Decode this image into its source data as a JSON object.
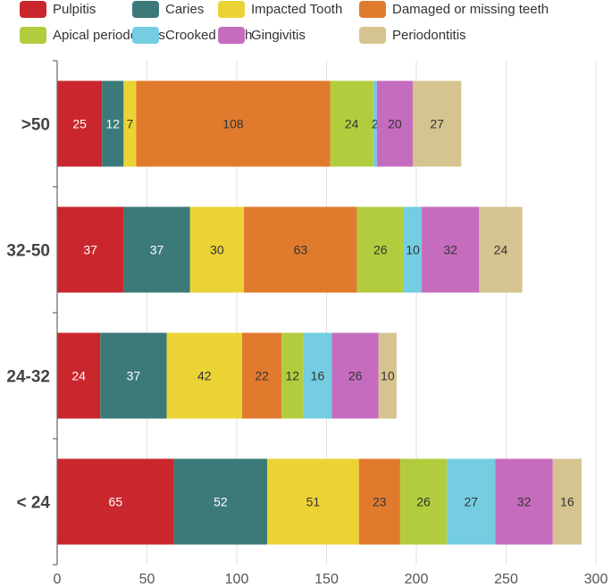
{
  "chart_data": {
    "type": "bar",
    "orientation": "horizontal",
    "stacked": true,
    "title": "",
    "xlabel": "",
    "ylabel": "",
    "xlim": [
      0,
      300
    ],
    "x_ticks": [
      0,
      50,
      100,
      150,
      200,
      250,
      300
    ],
    "grid": true,
    "legend_position": "top",
    "categories": [
      ">50",
      "32-50",
      "24-32",
      "< 24"
    ],
    "series": [
      {
        "name": "Pulpitis",
        "color": "#c9272d",
        "label_color": "#ffffff",
        "values": [
          25,
          37,
          24,
          65
        ]
      },
      {
        "name": "Caries",
        "color": "#3b7a78",
        "label_color": "#ffffff",
        "values": [
          12,
          37,
          37,
          52
        ]
      },
      {
        "name": "Impacted Tooth",
        "color": "#ecd335",
        "label_color": "#333333",
        "values": [
          7,
          30,
          42,
          51
        ]
      },
      {
        "name": "Damaged or missing teeth",
        "color": "#e07b2e",
        "label_color": "#333333",
        "values": [
          108,
          63,
          22,
          23
        ]
      },
      {
        "name": "Apical periodontitis",
        "color": "#b1cd3d",
        "label_color": "#333333",
        "values": [
          24,
          26,
          12,
          26
        ]
      },
      {
        "name": "Crooked Teeth",
        "color": "#74cde0",
        "label_color": "#333333",
        "values": [
          2,
          10,
          16,
          27
        ]
      },
      {
        "name": "Gingivitis",
        "color": "#c66cbf",
        "label_color": "#333333",
        "values": [
          20,
          32,
          26,
          32
        ]
      },
      {
        "name": "Periodontitis",
        "color": "#d6c490",
        "label_color": "#333333",
        "values": [
          27,
          24,
          10,
          16
        ]
      }
    ]
  }
}
